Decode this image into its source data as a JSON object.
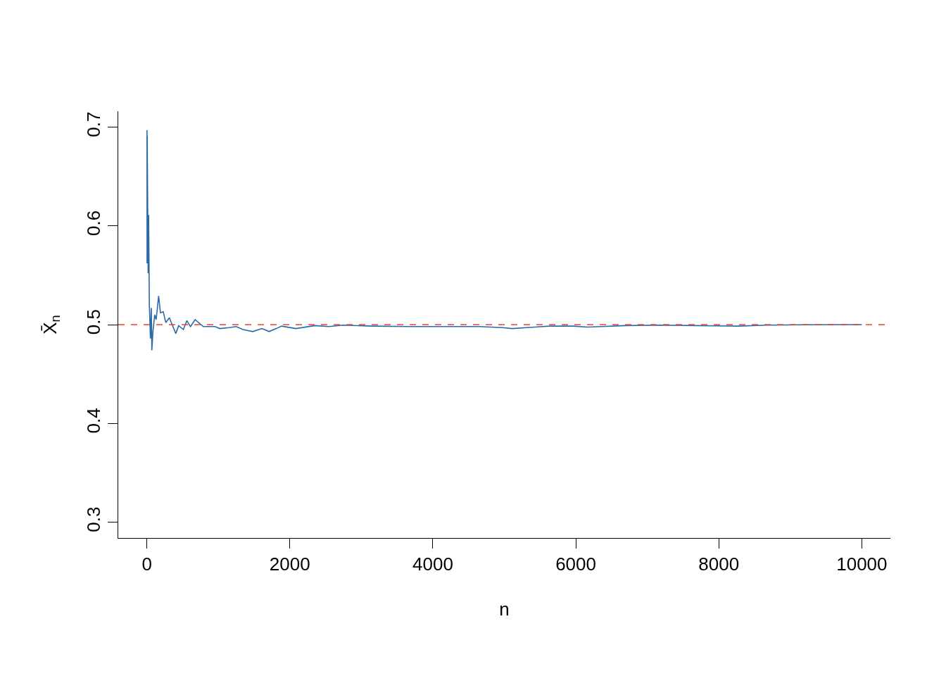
{
  "chart_data": {
    "type": "line",
    "xlabel": "n",
    "ylabel": "X̄$_{n}$",
    "x": [
      2,
      3,
      5,
      18,
      25,
      35,
      50,
      62,
      70,
      85,
      110,
      130,
      165,
      190,
      230,
      265,
      315,
      365,
      405,
      445,
      510,
      560,
      610,
      675,
      790,
      955,
      1020,
      1150,
      1250,
      1345,
      1480,
      1610,
      1710,
      1810,
      1885,
      2085,
      2350,
      2545,
      2745,
      3170,
      3660,
      4155,
      4650,
      4975,
      5110,
      5310,
      5635,
      5965,
      6160,
      6360,
      6690,
      7185,
      7680,
      8270,
      8665,
      9160,
      9655,
      10000
    ],
    "series": [
      {
        "color": "#2c6aa6",
        "values": [
          0.697,
          0.562,
          0.691,
          0.552,
          0.611,
          0.52,
          0.486,
          0.517,
          0.474,
          0.493,
          0.51,
          0.505,
          0.529,
          0.512,
          0.513,
          0.502,
          0.507,
          0.498,
          0.491,
          0.499,
          0.495,
          0.504,
          0.498,
          0.505,
          0.498,
          0.498,
          0.496,
          0.497,
          0.498,
          0.495,
          0.493,
          0.496,
          0.493,
          0.496,
          0.4985,
          0.496,
          0.499,
          0.498,
          0.4995,
          0.4985,
          0.498,
          0.498,
          0.498,
          0.497,
          0.496,
          0.497,
          0.4985,
          0.4985,
          0.4975,
          0.498,
          0.499,
          0.4995,
          0.499,
          0.4985,
          0.4995,
          0.4998,
          0.5,
          0.5
        ]
      }
    ],
    "xlim": [
      -400,
      10400
    ],
    "xticks": [
      0,
      2000,
      4000,
      6000,
      8000,
      10000
    ],
    "ylim": [
      0.284,
      0.716
    ],
    "yticks": [
      0.3,
      0.4,
      0.5,
      0.6,
      0.7
    ],
    "ref_lines": [
      {
        "axis": "y",
        "value": 0.5,
        "color": "#e8433a",
        "line_style": "dashed"
      }
    ],
    "legend": false,
    "marker": "none",
    "line_style": "solid"
  }
}
